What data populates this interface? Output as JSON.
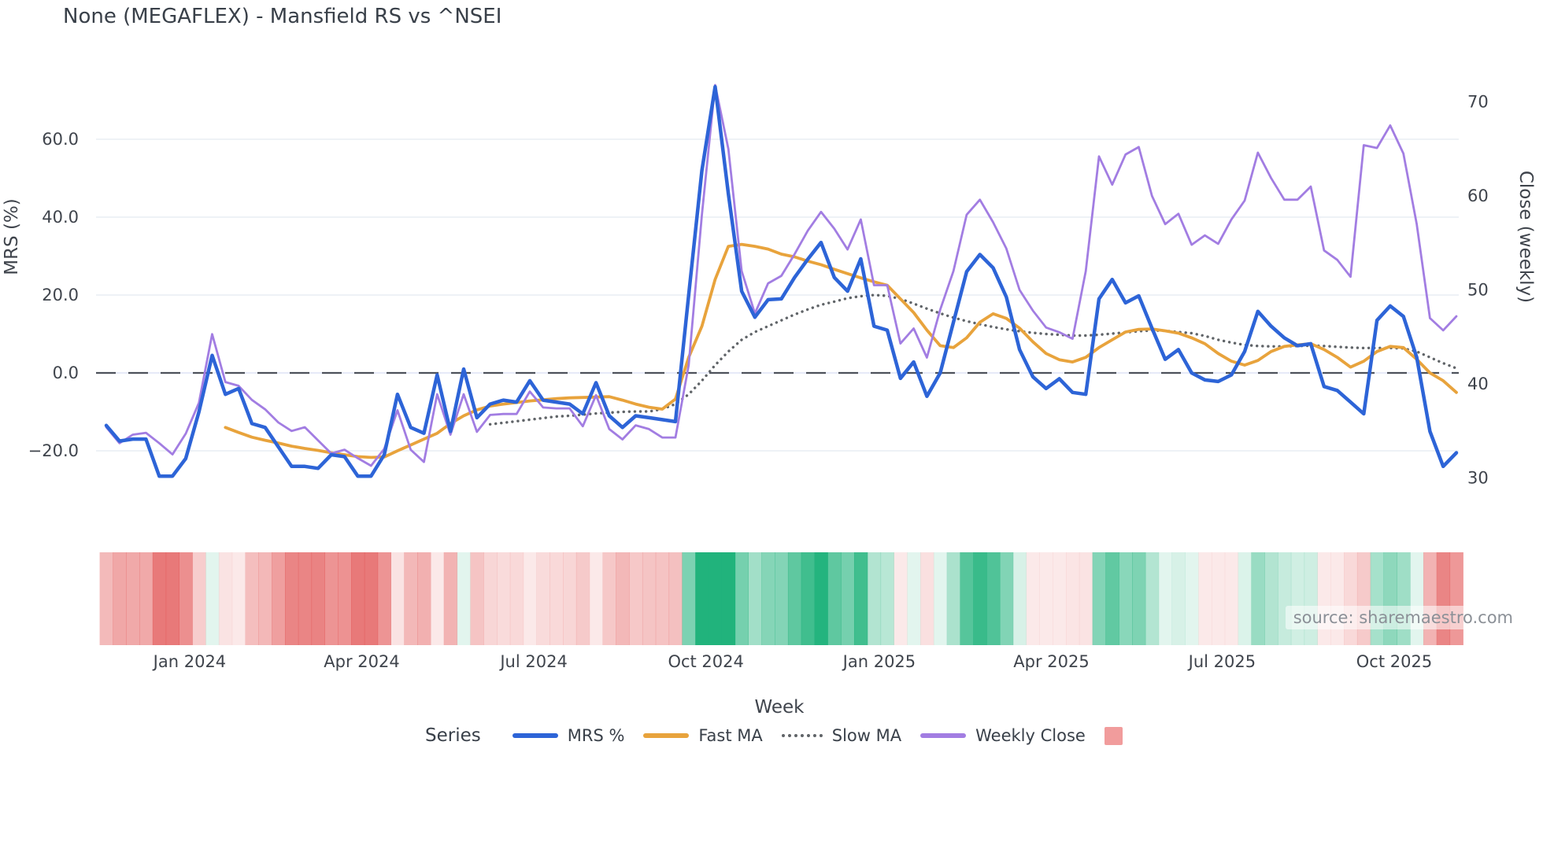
{
  "title": "None (MEGAFLEX) - Mansfield RS vs ^NSEI",
  "watermark": "source: sharemaestro.com",
  "colors": {
    "mrs": "#2d64d7",
    "fast_ma": "#e8a33c",
    "slow_ma": "#606468",
    "weekly_close": "#a27de2",
    "heat_red": "#e25353",
    "heat_green": "#21b37c",
    "grid": "#e9edf4",
    "zero_grid": "#dde3f5",
    "zero_line": "#4d525b",
    "text": "#3f444c",
    "legend_square": "#f19c9c"
  },
  "axes": {
    "left": {
      "title": "MRS (%)",
      "tick_labels": [
        "60.0",
        "40.0",
        "20.0",
        "0.0",
        "−20.0"
      ],
      "tick_values": [
        60,
        40,
        20,
        0,
        -20
      ]
    },
    "right": {
      "title": "Close (weekly)",
      "tick_labels": [
        "70",
        "60",
        "50",
        "40",
        "30"
      ],
      "tick_values": [
        70,
        60,
        50,
        40,
        30
      ]
    },
    "x": {
      "title": "Week",
      "tick_labels": [
        "Jan 2024",
        "Apr 2024",
        "Jul 2024",
        "Oct 2024",
        "Jan 2025",
        "Apr 2025",
        "Jul 2025",
        "Oct 2025"
      ],
      "tick_weeks": [
        6.3,
        19.3,
        32.3,
        45.3,
        58.4,
        71.4,
        84.3,
        97.3
      ]
    }
  },
  "legend": {
    "title": "Series",
    "items": [
      {
        "label": "MRS %",
        "swatch": "line",
        "color_key": "mrs"
      },
      {
        "label": "Fast MA",
        "swatch": "line",
        "color_key": "fast_ma"
      },
      {
        "label": "Slow MA",
        "swatch": "dotted",
        "color_key": "slow_ma"
      },
      {
        "label": "Weekly Close",
        "swatch": "line",
        "color_key": "weekly_close"
      },
      {
        "label": "",
        "swatch": "square",
        "color_key": "legend_square"
      }
    ]
  },
  "chart_data": {
    "type": "line",
    "x_unit": "weeks from 2023-11-13, weekly data Nov 2023 - Nov 2025",
    "ylabel_left": "MRS (%)",
    "ylabel_right": "Close (weekly)",
    "ylim_left": [
      -30,
      80
    ],
    "ylim_right": [
      28,
      72
    ],
    "grid": true,
    "legend_position": "bottom",
    "zero_reference_line": 0,
    "series": [
      {
        "name": "MRS %",
        "axis": "left",
        "style": "solid",
        "width": 4.5,
        "color_key": "mrs",
        "values": [
          -13.5,
          -17.5,
          -17,
          -17,
          -26.5,
          -26.5,
          -22,
          -10,
          4.5,
          -5.5,
          -4,
          -13,
          -14,
          -19,
          -24,
          -24,
          -24.5,
          -21,
          -21.5,
          -26.5,
          -26.5,
          -21,
          -5.5,
          -14,
          -15.5,
          -0.5,
          -15,
          1,
          -11.5,
          -8,
          -7,
          -7.5,
          -2,
          -7,
          -7.5,
          -8,
          -10.5,
          -2.5,
          -11,
          -14,
          -11,
          -11.5,
          -12,
          -12.5,
          20,
          52,
          73.5,
          46,
          21,
          14.3,
          18.8,
          19,
          24.5,
          29.2,
          33.5,
          24.5,
          21,
          29.3,
          12,
          11,
          -1.4,
          2.8,
          -6,
          0,
          13,
          26,
          30.4,
          27,
          19.5,
          6,
          -1,
          -4,
          -1.5,
          -5,
          -5.5,
          19,
          24,
          18,
          19.8,
          11.5,
          3.5,
          6,
          0,
          -1.8,
          -2.2,
          -0.5,
          5.5,
          15.8,
          12,
          9,
          7,
          7.5,
          -3.5,
          -4.5,
          -7.5,
          -10.5,
          13.5,
          17.2,
          14.5,
          4,
          -15,
          -24,
          -20.5
        ]
      },
      {
        "name": "Fast MA",
        "axis": "left",
        "style": "solid",
        "width": 3.8,
        "color_key": "fast_ma",
        "values": [
          null,
          null,
          null,
          null,
          null,
          null,
          null,
          null,
          null,
          -14,
          -15.3,
          -16.5,
          -17.3,
          -18,
          -18.8,
          -19.4,
          -19.9,
          -20.5,
          -21,
          -21.5,
          -21.7,
          -21.6,
          -20,
          -18.5,
          -17,
          -15.5,
          -13,
          -11,
          -9.5,
          -8.5,
          -8,
          -7.6,
          -7.2,
          -6.9,
          -6.6,
          -6.4,
          -6.3,
          -6.2,
          -6.1,
          -7,
          -8,
          -8.8,
          -9.3,
          -6.7,
          4,
          12,
          24,
          32.5,
          33,
          32.5,
          31.8,
          30.5,
          29.8,
          28.7,
          27.8,
          26.6,
          25.5,
          24.4,
          23.4,
          22.5,
          19,
          15.5,
          11,
          7,
          6.5,
          9,
          13,
          15.2,
          14,
          11.5,
          8,
          5,
          3.4,
          2.8,
          4,
          6.5,
          8.5,
          10.5,
          11.2,
          11.3,
          10.8,
          10.2,
          9,
          7.5,
          5,
          3,
          2,
          3.2,
          5.5,
          6.8,
          7.2,
          7.5,
          6,
          4,
          1.5,
          3,
          5.5,
          6.8,
          6.5,
          3.5,
          0,
          -2,
          -5
        ]
      },
      {
        "name": "Slow MA",
        "axis": "left",
        "style": "dotted",
        "width": 3.4,
        "color_key": "slow_ma",
        "values": [
          null,
          null,
          null,
          null,
          null,
          null,
          null,
          null,
          null,
          null,
          null,
          null,
          null,
          null,
          null,
          null,
          null,
          null,
          null,
          null,
          null,
          null,
          null,
          null,
          null,
          null,
          null,
          null,
          null,
          -13.2,
          -12.8,
          -12.4,
          -12,
          -11.6,
          -11.2,
          -11,
          -10.7,
          -10.4,
          -10.2,
          -10,
          -9.9,
          -9.9,
          -9.3,
          -8,
          -5.5,
          -2,
          2,
          5.5,
          8.5,
          10.5,
          12,
          13.5,
          15,
          16.3,
          17.5,
          18.3,
          19.2,
          19.7,
          20,
          19.8,
          19,
          17.8,
          16.5,
          15.3,
          14.2,
          13.3,
          12.5,
          11.8,
          11.2,
          10.7,
          10.3,
          10,
          9.8,
          9.6,
          9.6,
          9.8,
          10.1,
          10.4,
          10.7,
          10.9,
          10.8,
          10.5,
          10.2,
          9.5,
          8.5,
          7.8,
          7.2,
          6.9,
          6.8,
          6.8,
          6.9,
          7,
          6.9,
          6.7,
          6.5,
          6.4,
          6.4,
          6.4,
          6.3,
          5.5,
          4,
          2.5,
          1.2
        ]
      },
      {
        "name": "Weekly Close",
        "axis": "right",
        "style": "solid",
        "width": 2.8,
        "color_key": "weekly_close",
        "values": [
          35.4,
          33.7,
          34.6,
          34.8,
          33.7,
          32.5,
          34.7,
          38,
          45.3,
          40.2,
          39.8,
          38.3,
          37.3,
          35.9,
          35,
          35.4,
          34,
          32.6,
          33,
          32.1,
          31.3,
          33.1,
          37.2,
          33,
          31.7,
          38.9,
          34.6,
          38.9,
          34.9,
          36.7,
          36.8,
          36.8,
          39.2,
          37.5,
          37.4,
          37.4,
          35.5,
          38.8,
          35.2,
          34.1,
          35.6,
          35.2,
          34.3,
          34.3,
          42,
          58,
          71.8,
          65,
          52,
          47.5,
          50.7,
          51.5,
          53.8,
          56.3,
          58.3,
          56.5,
          54.3,
          57.5,
          50.5,
          50.5,
          44.3,
          45.9,
          42.8,
          47.9,
          52,
          58,
          59.6,
          57.2,
          54.4,
          50,
          47.8,
          46,
          45.5,
          44.8,
          52,
          64.2,
          61.2,
          64.4,
          65.2,
          60,
          57,
          58.1,
          54.8,
          55.8,
          54.9,
          57.5,
          59.5,
          64.6,
          61.9,
          59.6,
          59.6,
          61,
          54.2,
          53.2,
          51.4,
          65.4,
          65.1,
          67.5,
          64.5,
          57,
          47,
          45.7,
          47.2
        ]
      }
    ],
    "heatmap": {
      "description": "weekly strip colored red for negative MRS, green for positive, intensity proportional to magnitude",
      "source_series": "MRS %"
    }
  }
}
